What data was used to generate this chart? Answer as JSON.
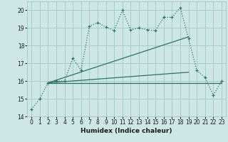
{
  "xlabel": "Humidex (Indice chaleur)",
  "background_color": "#cde8e4",
  "grid_color": "#a8ccca",
  "line_color": "#2d7068",
  "xlim": [
    -0.5,
    23.5
  ],
  "ylim": [
    14,
    20.5
  ],
  "yticks": [
    14,
    15,
    16,
    17,
    18,
    19,
    20
  ],
  "xticks": [
    0,
    1,
    2,
    3,
    4,
    5,
    6,
    7,
    8,
    9,
    10,
    11,
    12,
    13,
    14,
    15,
    16,
    17,
    18,
    19,
    20,
    21,
    22,
    23
  ],
  "series1_x": [
    0,
    1,
    2,
    3,
    4,
    5,
    6,
    7,
    8,
    9,
    10,
    11,
    12,
    13,
    14,
    15,
    16,
    17,
    18,
    19,
    20,
    21,
    22,
    23
  ],
  "series1_y": [
    14.4,
    15.0,
    15.9,
    16.0,
    16.0,
    17.3,
    16.6,
    19.1,
    19.3,
    19.05,
    18.85,
    20.0,
    18.9,
    19.0,
    18.9,
    18.85,
    19.6,
    19.6,
    20.15,
    18.4,
    16.6,
    16.2,
    15.2,
    16.0
  ],
  "series2_x": [
    2,
    23
  ],
  "series2_y": [
    15.9,
    15.9
  ],
  "series3_x": [
    2,
    19
  ],
  "series3_y": [
    15.9,
    18.5
  ],
  "series4_x": [
    2,
    19
  ],
  "series4_y": [
    15.9,
    16.5
  ]
}
